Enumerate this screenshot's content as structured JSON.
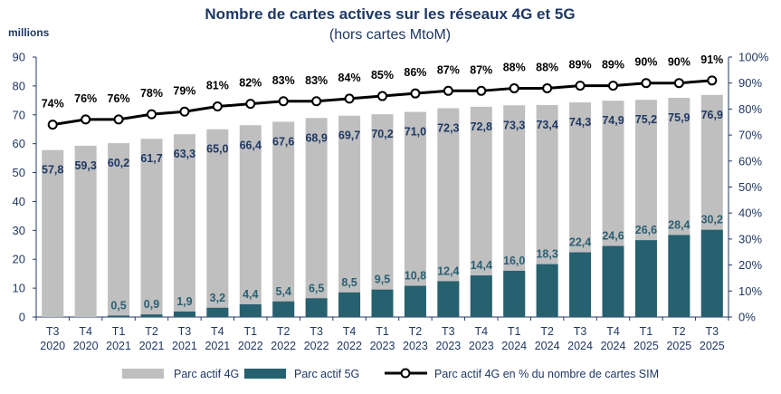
{
  "chart_data": {
    "type": "bar",
    "title": "Nombre de cartes actives sur les réseaux 4G et 5G",
    "subtitle": "(hors cartes MtoM)",
    "ylabel": "millions",
    "ylim": [
      0,
      90
    ],
    "y_ticks": [
      "0",
      "10",
      "20",
      "30",
      "40",
      "50",
      "60",
      "70",
      "80",
      "90"
    ],
    "y2lim": [
      0,
      100
    ],
    "y2_ticks": [
      "0%",
      "10%",
      "20%",
      "30%",
      "40%",
      "50%",
      "60%",
      "70%",
      "80%",
      "90%",
      "100%"
    ],
    "grid": false,
    "legend_position": "bottom",
    "categories": [
      [
        "T3",
        "2020"
      ],
      [
        "T4",
        "2020"
      ],
      [
        "T1",
        "2021"
      ],
      [
        "T2",
        "2021"
      ],
      [
        "T3",
        "2021"
      ],
      [
        "T4",
        "2021"
      ],
      [
        "T1",
        "2022"
      ],
      [
        "T2",
        "2022"
      ],
      [
        "T3",
        "2022"
      ],
      [
        "T4",
        "2022"
      ],
      [
        "T1",
        "2023"
      ],
      [
        "T2",
        "2023"
      ],
      [
        "T3",
        "2023"
      ],
      [
        "T4",
        "2023"
      ],
      [
        "T1",
        "2024"
      ],
      [
        "T2",
        "2024"
      ],
      [
        "T3",
        "2024"
      ],
      [
        "T4",
        "2024"
      ],
      [
        "T1",
        "2025"
      ],
      [
        "T2",
        "2025"
      ],
      [
        "T3",
        "2025"
      ]
    ],
    "series": [
      {
        "name": "Parc actif 4G",
        "kind": "bar",
        "axis": "left",
        "color": "#bfbfbf",
        "values": [
          57.8,
          59.3,
          60.2,
          61.7,
          63.3,
          65.0,
          66.4,
          67.6,
          68.9,
          69.7,
          70.2,
          71.0,
          72.3,
          72.8,
          73.3,
          73.4,
          74.3,
          74.9,
          75.2,
          75.9,
          76.9
        ],
        "labels": [
          "57,8",
          "59,3",
          "60,2",
          "61,7",
          "63,3",
          "65,0",
          "66,4",
          "67,6",
          "68,9",
          "69,7",
          "70,2",
          "71,0",
          "72,3",
          "72,8",
          "73,3",
          "73,4",
          "74,3",
          "74,9",
          "75,2",
          "75,9",
          "76,9"
        ]
      },
      {
        "name": "Parc actif 5G",
        "kind": "bar",
        "axis": "left",
        "color": "#27606f",
        "values": [
          null,
          null,
          0.5,
          0.9,
          1.9,
          3.2,
          4.4,
          5.4,
          6.5,
          8.5,
          9.5,
          10.8,
          12.4,
          14.4,
          16.0,
          18.3,
          22.4,
          24.6,
          26.6,
          28.4,
          30.2
        ],
        "labels": [
          "",
          "",
          "0,5",
          "0,9",
          "1,9",
          "3,2",
          "4,4",
          "5,4",
          "6,5",
          "8,5",
          "9,5",
          "10,8",
          "12,4",
          "14,4",
          "16,0",
          "18,3",
          "22,4",
          "24,6",
          "26,6",
          "28,4",
          "30,2"
        ]
      },
      {
        "name": "Parc actif 4G en % du nombre de cartes SIM",
        "kind": "line",
        "axis": "right",
        "color": "#000000",
        "values": [
          74,
          76,
          76,
          78,
          79,
          81,
          82,
          83,
          83,
          84,
          85,
          86,
          87,
          87,
          88,
          88,
          89,
          89,
          90,
          90,
          91
        ],
        "labels": [
          "74%",
          "76%",
          "76%",
          "78%",
          "79%",
          "81%",
          "82%",
          "83%",
          "83%",
          "84%",
          "85%",
          "86%",
          "87%",
          "87%",
          "88%",
          "88%",
          "89%",
          "89%",
          "90%",
          "90%",
          "91%"
        ]
      }
    ]
  }
}
